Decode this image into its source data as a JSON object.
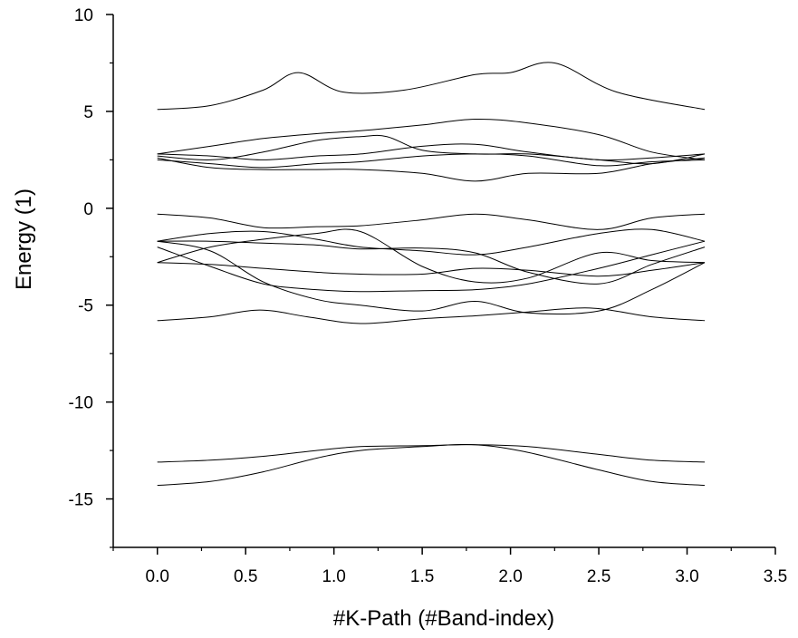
{
  "chart_data": {
    "type": "line",
    "title": "",
    "xlabel": "#K-Path (#Band-index)",
    "ylabel": "Energy (1)",
    "xlim": [
      -0.25,
      3.5
    ],
    "ylim": [
      -17.5,
      10
    ],
    "x_ticks": [
      0.0,
      0.5,
      1.0,
      1.5,
      2.0,
      2.5,
      3.0,
      3.5
    ],
    "x_tick_labels": [
      "0.0",
      "0.5",
      "1.0",
      "1.5",
      "2.0",
      "2.5",
      "3.0",
      "3.5"
    ],
    "y_ticks": [
      10,
      5,
      0,
      -5,
      -10,
      -15
    ],
    "y_tick_labels": [
      "10",
      "5",
      "0",
      "-5",
      "-10",
      "-15"
    ],
    "line_color": "#000000",
    "axis_color": "#000000",
    "series": [
      {
        "name": "band-1",
        "x": [
          0.0,
          0.3,
          0.6,
          0.9,
          1.15,
          1.5,
          1.8,
          2.1,
          2.5,
          2.8,
          3.1
        ],
        "values": [
          -14.3,
          -14.1,
          -13.6,
          -12.9,
          -12.5,
          -12.3,
          -12.2,
          -12.6,
          -13.5,
          -14.1,
          -14.3
        ]
      },
      {
        "name": "band-2",
        "x": [
          0.0,
          0.3,
          0.6,
          0.9,
          1.15,
          1.5,
          1.8,
          2.1,
          2.5,
          2.8,
          3.1
        ],
        "values": [
          -13.1,
          -13.0,
          -12.8,
          -12.5,
          -12.3,
          -12.25,
          -12.2,
          -12.3,
          -12.7,
          -13.0,
          -13.1
        ]
      },
      {
        "name": "band-3",
        "x": [
          0.0,
          0.3,
          0.58,
          0.85,
          1.15,
          1.5,
          1.8,
          2.1,
          2.45,
          2.8,
          3.1
        ],
        "values": [
          -5.8,
          -5.6,
          -5.25,
          -5.6,
          -5.95,
          -5.7,
          -5.55,
          -5.35,
          -5.15,
          -5.6,
          -5.8
        ]
      },
      {
        "name": "band-4",
        "x": [
          0.0,
          0.3,
          0.6,
          0.9,
          1.15,
          1.5,
          1.8,
          2.1,
          2.5,
          2.8,
          3.1
        ],
        "values": [
          -1.7,
          -2.2,
          -3.8,
          -4.7,
          -5.0,
          -5.3,
          -4.8,
          -5.4,
          -5.3,
          -4.2,
          -2.8
        ]
      },
      {
        "name": "band-5",
        "x": [
          0.0,
          0.3,
          0.6,
          0.9,
          1.15,
          1.5,
          1.8,
          2.1,
          2.5,
          2.8,
          3.1
        ],
        "values": [
          -2.0,
          -3.0,
          -3.9,
          -4.2,
          -4.3,
          -4.25,
          -4.2,
          -3.9,
          -3.1,
          -2.4,
          -1.7
        ]
      },
      {
        "name": "band-6",
        "x": [
          0.0,
          0.3,
          0.6,
          0.9,
          1.15,
          1.5,
          1.8,
          2.1,
          2.5,
          2.8,
          3.1
        ],
        "values": [
          -2.8,
          -2.9,
          -3.1,
          -3.3,
          -3.4,
          -3.4,
          -3.1,
          -3.2,
          -3.5,
          -3.2,
          -2.8
        ]
      },
      {
        "name": "band-7",
        "x": [
          0.0,
          0.3,
          0.6,
          0.9,
          1.15,
          1.5,
          1.8,
          2.1,
          2.5,
          2.8,
          3.1
        ],
        "values": [
          -2.8,
          -2.0,
          -1.6,
          -1.3,
          -1.2,
          -3.0,
          -3.8,
          -3.6,
          -2.3,
          -2.7,
          -2.8
        ]
      },
      {
        "name": "band-8",
        "x": [
          0.0,
          0.3,
          0.6,
          0.9,
          1.15,
          1.5,
          1.8,
          2.1,
          2.5,
          2.8,
          3.1
        ],
        "values": [
          -1.7,
          -1.3,
          -1.2,
          -1.6,
          -2.0,
          -2.2,
          -2.4,
          -2.0,
          -1.3,
          -1.1,
          -1.7
        ]
      },
      {
        "name": "band-9",
        "x": [
          0.0,
          0.3,
          0.6,
          0.9,
          1.15,
          1.5,
          1.8,
          2.1,
          2.5,
          2.8,
          3.1
        ],
        "values": [
          -1.7,
          -1.7,
          -1.8,
          -1.9,
          -2.1,
          -2.05,
          -2.3,
          -3.3,
          -3.9,
          -2.9,
          -2.0
        ]
      },
      {
        "name": "band-10",
        "x": [
          0.0,
          0.3,
          0.6,
          0.9,
          1.15,
          1.5,
          1.8,
          2.1,
          2.5,
          2.8,
          3.1
        ],
        "values": [
          -0.3,
          -0.5,
          -1.0,
          -0.95,
          -0.9,
          -0.6,
          -0.3,
          -0.6,
          -1.1,
          -0.5,
          -0.3
        ]
      },
      {
        "name": "band-11",
        "x": [
          0.0,
          0.3,
          0.6,
          0.9,
          1.15,
          1.5,
          1.8,
          2.1,
          2.5,
          2.8,
          3.1
        ],
        "values": [
          2.6,
          2.1,
          2.0,
          2.0,
          2.0,
          1.8,
          1.4,
          1.8,
          1.8,
          2.3,
          2.6
        ]
      },
      {
        "name": "band-12",
        "x": [
          0.0,
          0.3,
          0.6,
          0.9,
          1.15,
          1.5,
          1.8,
          2.1,
          2.5,
          2.8,
          3.1
        ],
        "values": [
          2.5,
          2.3,
          2.1,
          2.3,
          2.4,
          2.7,
          2.8,
          2.7,
          2.2,
          2.4,
          2.5
        ]
      },
      {
        "name": "band-13",
        "x": [
          0.0,
          0.3,
          0.6,
          0.9,
          1.15,
          1.5,
          1.8,
          2.1,
          2.5,
          2.8,
          3.1
        ],
        "values": [
          2.8,
          2.7,
          2.5,
          2.7,
          2.8,
          3.2,
          3.3,
          2.9,
          2.5,
          2.6,
          2.8
        ]
      },
      {
        "name": "band-14",
        "x": [
          0.0,
          0.3,
          0.6,
          0.9,
          1.15,
          1.3,
          1.5,
          1.8,
          2.1,
          2.5,
          2.8,
          3.1
        ],
        "values": [
          2.7,
          2.5,
          2.9,
          3.5,
          3.7,
          3.7,
          3.0,
          2.8,
          2.8,
          2.5,
          2.3,
          2.8
        ]
      },
      {
        "name": "band-15",
        "x": [
          0.0,
          0.3,
          0.6,
          0.9,
          1.15,
          1.5,
          1.8,
          2.1,
          2.5,
          2.8,
          3.1
        ],
        "values": [
          2.8,
          3.2,
          3.6,
          3.85,
          4.0,
          4.3,
          4.6,
          4.4,
          3.8,
          2.9,
          2.5
        ]
      },
      {
        "name": "band-16",
        "x": [
          0.0,
          0.3,
          0.6,
          0.8,
          1.05,
          1.4,
          1.8,
          2.0,
          2.25,
          2.6,
          3.1
        ],
        "values": [
          5.1,
          5.3,
          6.1,
          7.0,
          6.0,
          6.1,
          6.9,
          7.0,
          7.5,
          6.0,
          5.1
        ]
      }
    ]
  }
}
